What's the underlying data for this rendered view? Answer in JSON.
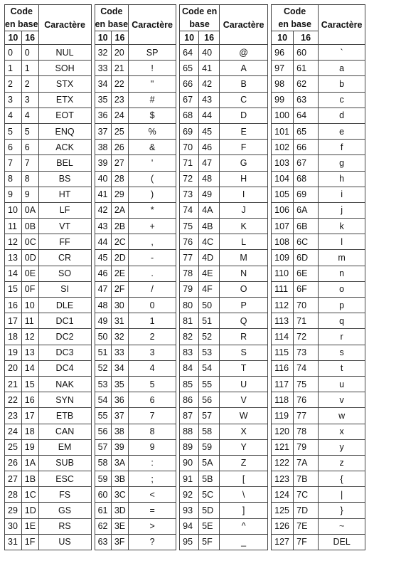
{
  "header": {
    "code_line1": "Code",
    "code_line2": "en base",
    "code_single": "Code en",
    "code_single2": "base",
    "char": "Caractère",
    "base10": "10",
    "base16": "16"
  },
  "blocks": [
    {
      "rows": [
        [
          "0",
          "0",
          "NUL"
        ],
        [
          "1",
          "1",
          "SOH"
        ],
        [
          "2",
          "2",
          "STX"
        ],
        [
          "3",
          "3",
          "ETX"
        ],
        [
          "4",
          "4",
          "EOT"
        ],
        [
          "5",
          "5",
          "ENQ"
        ],
        [
          "6",
          "6",
          "ACK"
        ],
        [
          "7",
          "7",
          "BEL"
        ],
        [
          "8",
          "8",
          "BS"
        ],
        [
          "9",
          "9",
          "HT"
        ],
        [
          "10",
          "0A",
          "LF"
        ],
        [
          "11",
          "0B",
          "VT"
        ],
        [
          "12",
          "0C",
          "FF"
        ],
        [
          "13",
          "0D",
          "CR"
        ],
        [
          "14",
          "0E",
          "SO"
        ],
        [
          "15",
          "0F",
          "SI"
        ],
        [
          "16",
          "10",
          "DLE"
        ],
        [
          "17",
          "11",
          "DC1"
        ],
        [
          "18",
          "12",
          "DC2"
        ],
        [
          "19",
          "13",
          "DC3"
        ],
        [
          "20",
          "14",
          "DC4"
        ],
        [
          "21",
          "15",
          "NAK"
        ],
        [
          "22",
          "16",
          "SYN"
        ],
        [
          "23",
          "17",
          "ETB"
        ],
        [
          "24",
          "18",
          "CAN"
        ],
        [
          "25",
          "19",
          "EM"
        ],
        [
          "26",
          "1A",
          "SUB"
        ],
        [
          "27",
          "1B",
          "ESC"
        ],
        [
          "28",
          "1C",
          "FS"
        ],
        [
          "29",
          "1D",
          "GS"
        ],
        [
          "30",
          "1E",
          "RS"
        ],
        [
          "31",
          "1F",
          "US"
        ]
      ]
    },
    {
      "rows": [
        [
          "32",
          "20",
          "SP"
        ],
        [
          "33",
          "21",
          "!"
        ],
        [
          "34",
          "22",
          "\""
        ],
        [
          "35",
          "23",
          "#"
        ],
        [
          "36",
          "24",
          "$"
        ],
        [
          "37",
          "25",
          "%"
        ],
        [
          "38",
          "26",
          "&"
        ],
        [
          "39",
          "27",
          "'"
        ],
        [
          "40",
          "28",
          "("
        ],
        [
          "41",
          "29",
          ")"
        ],
        [
          "42",
          "2A",
          "*"
        ],
        [
          "43",
          "2B",
          "+"
        ],
        [
          "44",
          "2C",
          ","
        ],
        [
          "45",
          "2D",
          "-"
        ],
        [
          "46",
          "2E",
          "."
        ],
        [
          "47",
          "2F",
          "/"
        ],
        [
          "48",
          "30",
          "0"
        ],
        [
          "49",
          "31",
          "1"
        ],
        [
          "50",
          "32",
          "2"
        ],
        [
          "51",
          "33",
          "3"
        ],
        [
          "52",
          "34",
          "4"
        ],
        [
          "53",
          "35",
          "5"
        ],
        [
          "54",
          "36",
          "6"
        ],
        [
          "55",
          "37",
          "7"
        ],
        [
          "56",
          "38",
          "8"
        ],
        [
          "57",
          "39",
          "9"
        ],
        [
          "58",
          "3A",
          ":"
        ],
        [
          "59",
          "3B",
          ";"
        ],
        [
          "60",
          "3C",
          "<"
        ],
        [
          "61",
          "3D",
          "="
        ],
        [
          "62",
          "3E",
          ">"
        ],
        [
          "63",
          "3F",
          "?"
        ]
      ]
    },
    {
      "rows": [
        [
          "64",
          "40",
          "@"
        ],
        [
          "65",
          "41",
          "A"
        ],
        [
          "66",
          "42",
          "B"
        ],
        [
          "67",
          "43",
          "C"
        ],
        [
          "68",
          "44",
          "D"
        ],
        [
          "69",
          "45",
          "E"
        ],
        [
          "70",
          "46",
          "F"
        ],
        [
          "71",
          "47",
          "G"
        ],
        [
          "72",
          "48",
          "H"
        ],
        [
          "73",
          "49",
          "I"
        ],
        [
          "74",
          "4A",
          "J"
        ],
        [
          "75",
          "4B",
          "K"
        ],
        [
          "76",
          "4C",
          "L"
        ],
        [
          "77",
          "4D",
          "M"
        ],
        [
          "78",
          "4E",
          "N"
        ],
        [
          "79",
          "4F",
          "O"
        ],
        [
          "80",
          "50",
          "P"
        ],
        [
          "81",
          "51",
          "Q"
        ],
        [
          "82",
          "52",
          "R"
        ],
        [
          "83",
          "53",
          "S"
        ],
        [
          "84",
          "54",
          "T"
        ],
        [
          "85",
          "55",
          "U"
        ],
        [
          "86",
          "56",
          "V"
        ],
        [
          "87",
          "57",
          "W"
        ],
        [
          "88",
          "58",
          "X"
        ],
        [
          "89",
          "59",
          "Y"
        ],
        [
          "90",
          "5A",
          "Z"
        ],
        [
          "91",
          "5B",
          "["
        ],
        [
          "92",
          "5C",
          "\\"
        ],
        [
          "93",
          "5D",
          "]"
        ],
        [
          "94",
          "5E",
          "^"
        ],
        [
          "95",
          "5F",
          "_"
        ]
      ]
    },
    {
      "rows": [
        [
          "96",
          "60",
          "`"
        ],
        [
          "97",
          "61",
          "a"
        ],
        [
          "98",
          "62",
          "b"
        ],
        [
          "99",
          "63",
          "c"
        ],
        [
          "100",
          "64",
          "d"
        ],
        [
          "101",
          "65",
          "e"
        ],
        [
          "102",
          "66",
          "f"
        ],
        [
          "103",
          "67",
          "g"
        ],
        [
          "104",
          "68",
          "h"
        ],
        [
          "105",
          "69",
          "i"
        ],
        [
          "106",
          "6A",
          "j"
        ],
        [
          "107",
          "6B",
          "k"
        ],
        [
          "108",
          "6C",
          "l"
        ],
        [
          "109",
          "6D",
          "m"
        ],
        [
          "110",
          "6E",
          "n"
        ],
        [
          "111",
          "6F",
          "o"
        ],
        [
          "112",
          "70",
          "p"
        ],
        [
          "113",
          "71",
          "q"
        ],
        [
          "114",
          "72",
          "r"
        ],
        [
          "115",
          "73",
          "s"
        ],
        [
          "116",
          "74",
          "t"
        ],
        [
          "117",
          "75",
          "u"
        ],
        [
          "118",
          "76",
          "v"
        ],
        [
          "119",
          "77",
          "w"
        ],
        [
          "120",
          "78",
          "x"
        ],
        [
          "121",
          "79",
          "y"
        ],
        [
          "122",
          "7A",
          "z"
        ],
        [
          "123",
          "7B",
          "{"
        ],
        [
          "124",
          "7C",
          "|"
        ],
        [
          "125",
          "7D",
          "}"
        ],
        [
          "126",
          "7E",
          "~"
        ],
        [
          "127",
          "7F",
          "DEL"
        ]
      ]
    }
  ]
}
